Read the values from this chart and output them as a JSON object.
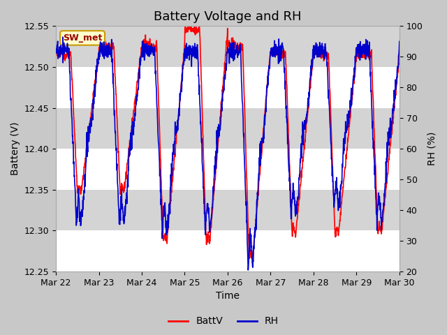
{
  "title": "Battery Voltage and RH",
  "xlabel": "Time",
  "ylabel_left": "Battery (V)",
  "ylabel_right": "RH (%)",
  "ylim_left": [
    12.25,
    12.55
  ],
  "ylim_right": [
    20,
    100
  ],
  "yticks_left": [
    12.25,
    12.3,
    12.35,
    12.4,
    12.45,
    12.5,
    12.55
  ],
  "yticks_right": [
    20,
    30,
    40,
    50,
    60,
    70,
    80,
    90,
    100
  ],
  "xtick_labels": [
    "Mar 22",
    "Mar 23",
    "Mar 24",
    "Mar 25",
    "Mar 26",
    "Mar 27",
    "Mar 28",
    "Mar 29",
    "Mar 30"
  ],
  "batt_color": "#ff0000",
  "rh_color": "#0000cc",
  "legend_label_batt": "BattV",
  "legend_label_rh": "RH",
  "station_label": "SW_met",
  "station_box_bg": "#ffffcc",
  "station_box_edge": "#cc9900",
  "station_text_color": "#990000",
  "outer_bg_color": "#c8c8c8",
  "plot_bg_color": "#e8e8e8",
  "alt_band_color": "#d4d4d4",
  "grid_color": "#ffffff",
  "title_fontsize": 13,
  "axis_label_fontsize": 10,
  "tick_fontsize": 9,
  "line_width": 1.2
}
